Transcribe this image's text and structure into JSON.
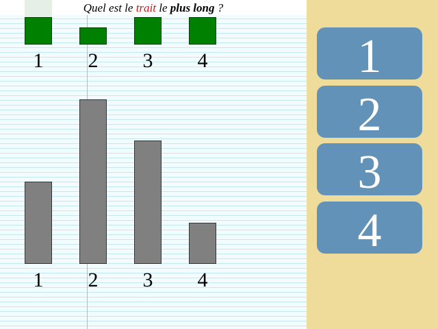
{
  "question": {
    "part1": "Quel est le ",
    "highlight": "trait",
    "part2": " le ",
    "bold": "plus long",
    "part3": " ?"
  },
  "colors": {
    "highlight": "#e01010",
    "mini_bar": "#008000",
    "bar": "#808080",
    "button": "#6392b8",
    "sidebar": "#f0dc9a"
  },
  "mini_bars": {
    "labels": [
      "1",
      "2",
      "3",
      "4"
    ],
    "values": [
      40,
      25,
      40,
      40
    ],
    "max": 40,
    "ghost_value": 18
  },
  "chart_data": {
    "type": "bar",
    "categories": [
      "1",
      "2",
      "3",
      "4"
    ],
    "values": [
      120,
      240,
      180,
      60
    ],
    "ylim": [
      0,
      240
    ]
  },
  "answers": [
    {
      "label": "1"
    },
    {
      "label": "2"
    },
    {
      "label": "3"
    },
    {
      "label": "4"
    }
  ]
}
